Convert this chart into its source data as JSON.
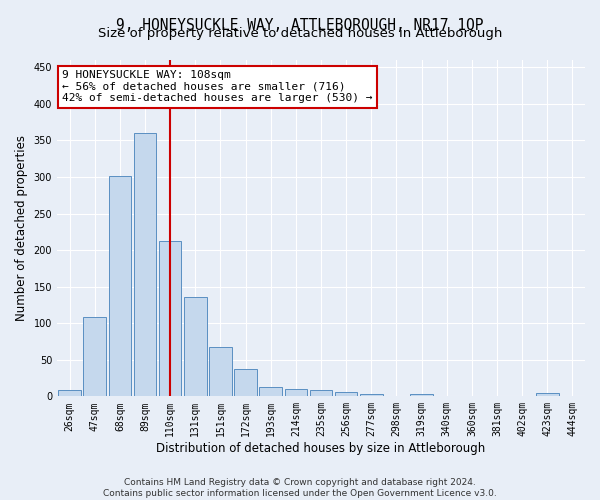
{
  "title": "9, HONEYSUCKLE WAY, ATTLEBOROUGH, NR17 1QP",
  "subtitle": "Size of property relative to detached houses in Attleborough",
  "xlabel": "Distribution of detached houses by size in Attleborough",
  "ylabel": "Number of detached properties",
  "categories": [
    "26sqm",
    "47sqm",
    "68sqm",
    "89sqm",
    "110sqm",
    "131sqm",
    "151sqm",
    "172sqm",
    "193sqm",
    "214sqm",
    "235sqm",
    "256sqm",
    "277sqm",
    "298sqm",
    "319sqm",
    "340sqm",
    "360sqm",
    "381sqm",
    "402sqm",
    "423sqm",
    "444sqm"
  ],
  "values": [
    8,
    108,
    301,
    360,
    213,
    136,
    68,
    38,
    13,
    10,
    9,
    6,
    3,
    1,
    3,
    0,
    0,
    0,
    0,
    4,
    0
  ],
  "bar_color": "#c5d8ed",
  "bar_edge_color": "#5a8fc2",
  "reference_line_x": 4,
  "reference_line_color": "#cc0000",
  "annotation_line1": "9 HONEYSUCKLE WAY: 108sqm",
  "annotation_line2": "← 56% of detached houses are smaller (716)",
  "annotation_line3": "42% of semi-detached houses are larger (530) →",
  "annotation_box_color": "#ffffff",
  "annotation_box_edge_color": "#cc0000",
  "ylim": [
    0,
    460
  ],
  "yticks": [
    0,
    50,
    100,
    150,
    200,
    250,
    300,
    350,
    400,
    450
  ],
  "footer": "Contains HM Land Registry data © Crown copyright and database right 2024.\nContains public sector information licensed under the Open Government Licence v3.0.",
  "background_color": "#e8eef7",
  "grid_color": "#ffffff",
  "title_fontsize": 10.5,
  "subtitle_fontsize": 9.5,
  "xlabel_fontsize": 8.5,
  "ylabel_fontsize": 8.5,
  "tick_fontsize": 7,
  "annotation_fontsize": 8,
  "footer_fontsize": 6.5
}
